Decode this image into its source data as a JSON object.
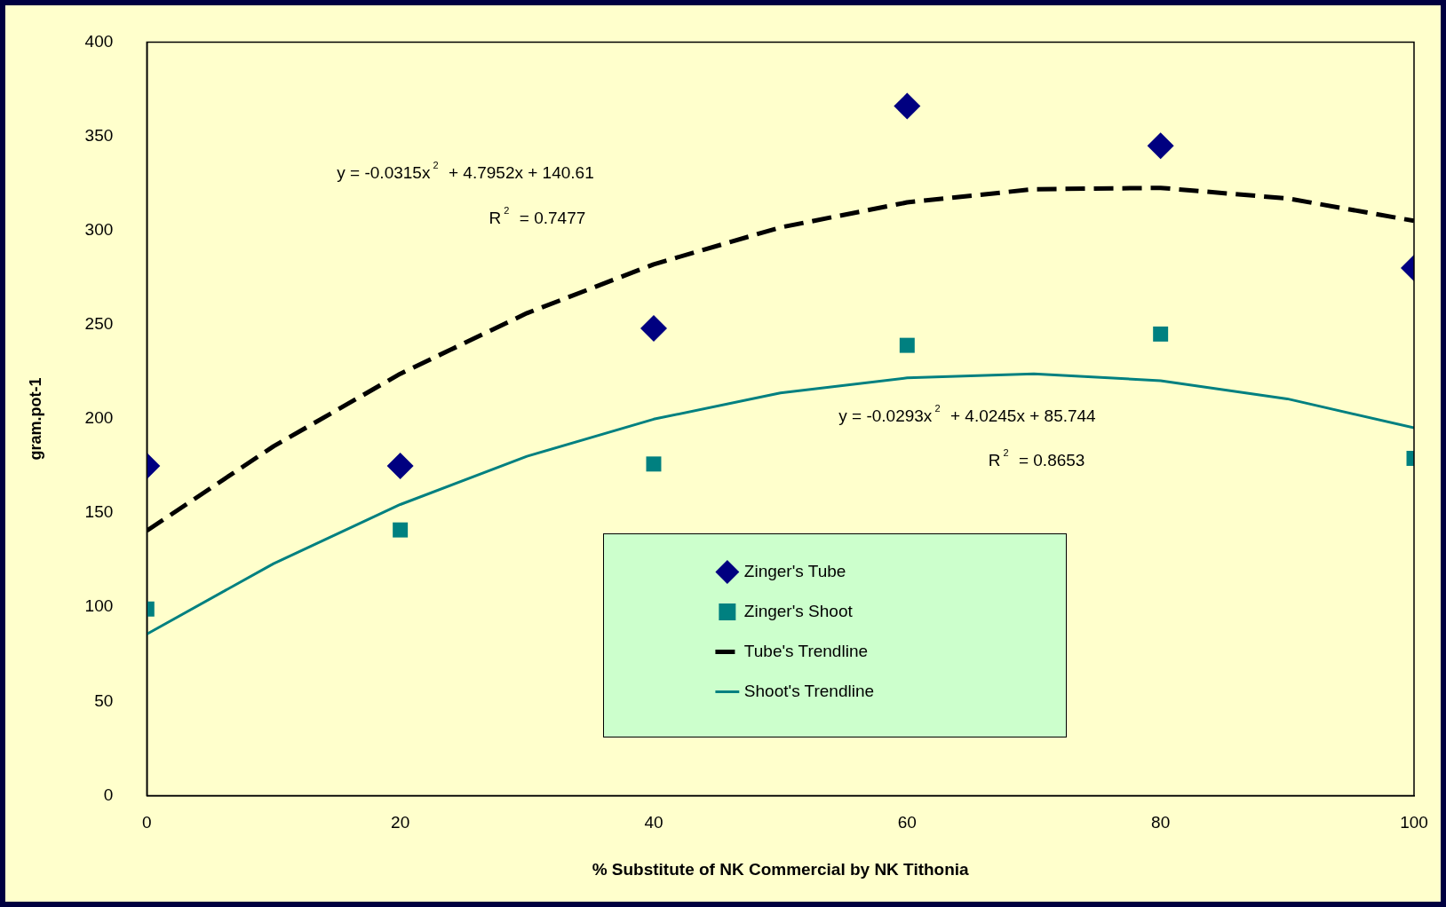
{
  "chart_data": {
    "type": "scatter",
    "xlabel": "% Substitute of NK Commercial by NK Tithonia",
    "ylabel": "gram.pot-1",
    "xlim": [
      0,
      100
    ],
    "xticks": [
      0,
      20,
      40,
      60,
      80,
      100
    ],
    "ylim": [
      0,
      400
    ],
    "yticks": [
      0,
      50,
      100,
      150,
      200,
      250,
      300,
      350,
      400
    ],
    "grid": false,
    "legend": "bottom",
    "annotations": [
      "y = -0.0315x$^{2}$ + 4.7952x + 140.61",
      "R$^{2}$ = 0.7477",
      "y = -0.0293x$^{2}$ + 4.0245x + 85.744",
      "R$^{2}$ = 0.8653"
    ],
    "series": [
      {
        "name": "Zinger's Tube",
        "type": "scatter",
        "marker": "diamond",
        "color": "#000080",
        "x": [
          0,
          20,
          40,
          60,
          80,
          100
        ],
        "values": [
          175,
          175,
          248,
          366,
          345,
          280
        ]
      },
      {
        "name": "Zinger's Shoot",
        "type": "scatter",
        "marker": "square",
        "color": "#008080",
        "x": [
          0,
          20,
          40,
          60,
          80,
          100
        ],
        "values": [
          99,
          141,
          176,
          239,
          245,
          179
        ]
      },
      {
        "name": "Tube's Trendline",
        "type": "line",
        "line_style": "dashed",
        "marker": "none",
        "color": "#000000",
        "x": [
          0,
          10,
          20,
          30,
          40,
          50,
          60,
          70,
          80,
          90,
          100
        ],
        "values": [
          140.6,
          185.4,
          223.9,
          256.1,
          282.0,
          301.6,
          314.9,
          321.9,
          322.6,
          317.0,
          305.1
        ]
      },
      {
        "name": "Shoot's Trendline",
        "type": "line",
        "line_style": "solid",
        "marker": "none",
        "color": "#008080",
        "x": [
          0,
          10,
          20,
          30,
          40,
          50,
          60,
          70,
          80,
          90,
          100
        ],
        "values": [
          85.7,
          123.1,
          154.5,
          180.1,
          199.8,
          213.7,
          221.7,
          223.9,
          220.2,
          210.6,
          195.2
        ]
      }
    ]
  }
}
